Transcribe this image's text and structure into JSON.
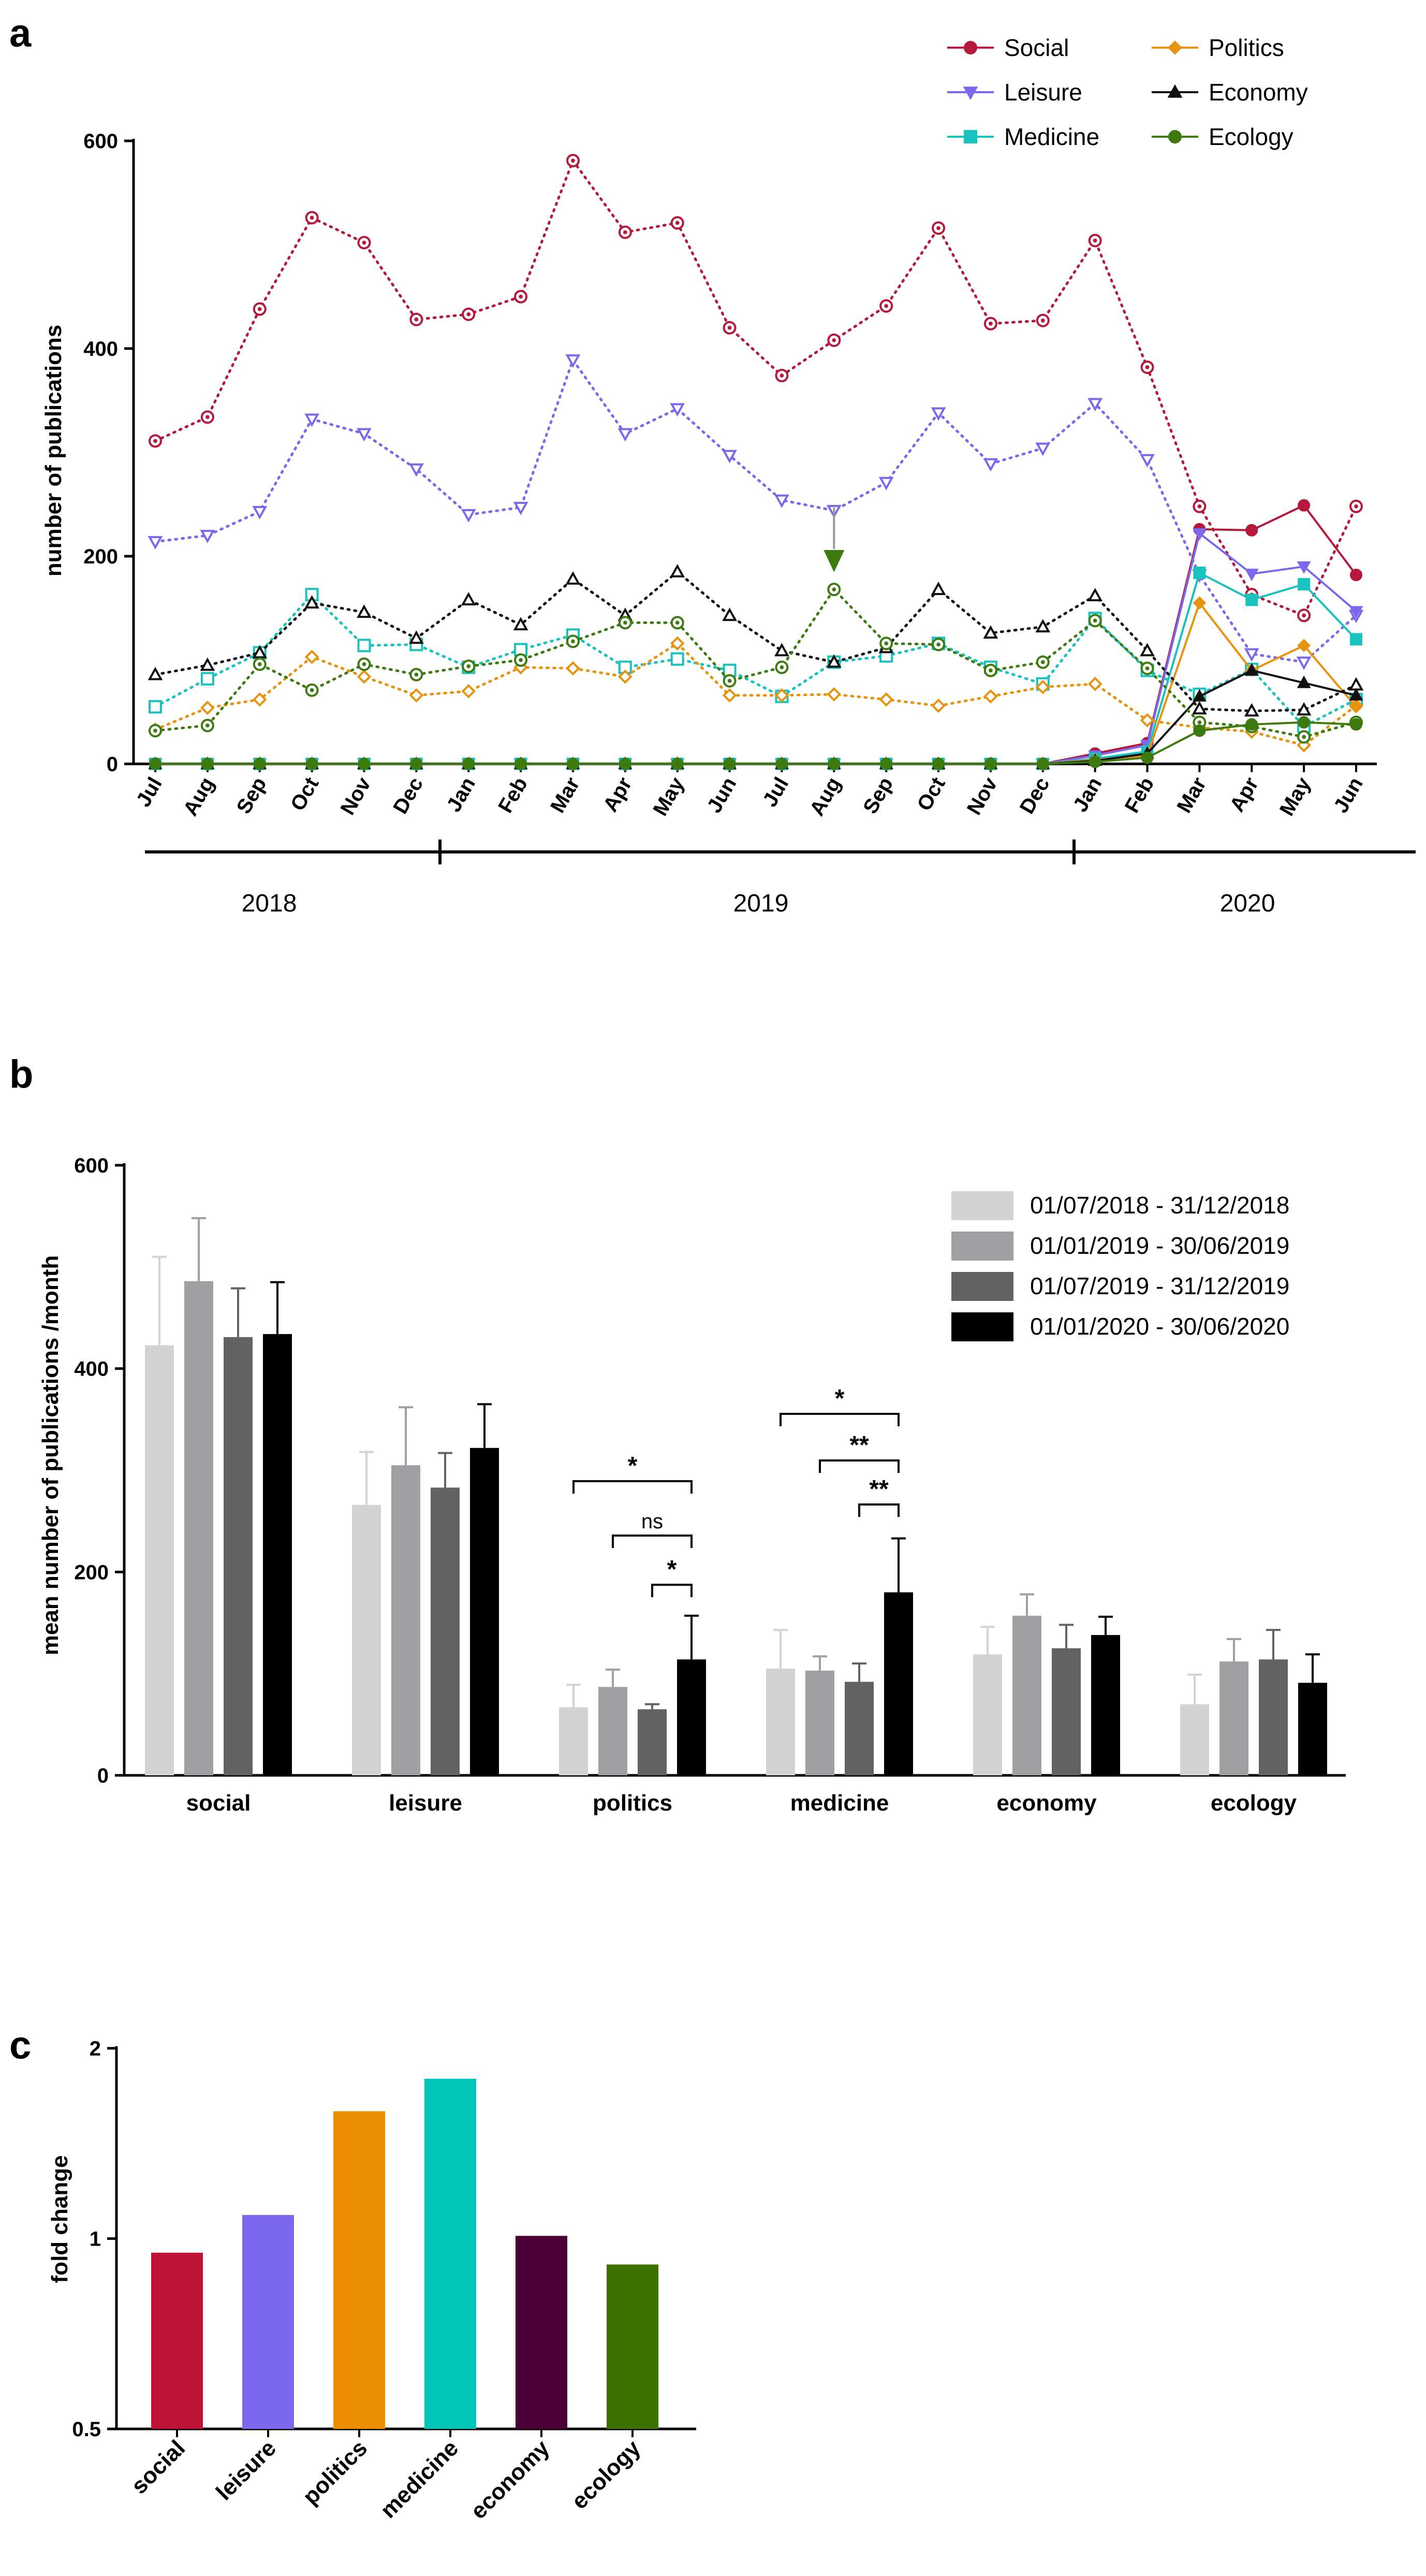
{
  "panels": {
    "a": "a",
    "b": "b",
    "c": "c"
  },
  "chart_data": [
    {
      "panel": "a",
      "type": "line",
      "ylabel": "number of publications",
      "ylim": [
        0,
        600
      ],
      "yticks": [
        0,
        200,
        400,
        600
      ],
      "x": [
        "Jul",
        "Aug",
        "Sep",
        "Oct",
        "Nov",
        "Dec",
        "Jan",
        "Feb",
        "Mar",
        "Apr",
        "May",
        "Jun",
        "Jul",
        "Aug",
        "Sep",
        "Oct",
        "Nov",
        "Dec",
        "Jan",
        "Feb",
        "Mar",
        "Apr",
        "May",
        "Jun"
      ],
      "years": [
        "2018",
        "2019",
        "2020"
      ],
      "legend_position": "top-right",
      "annotation": "arrow marker above Aug 2019 (ecology peak)",
      "series": [
        {
          "name": "Social",
          "color": "#b5183a",
          "marker": "circle",
          "baseline_dotted": [
            311,
            334,
            438,
            526,
            502,
            428,
            433,
            450,
            581,
            512,
            521,
            420,
            374,
            408,
            441,
            516,
            424,
            427,
            504,
            382,
            248,
            163,
            143,
            248
          ],
          "current_solid": [
            0,
            0,
            0,
            0,
            0,
            0,
            0,
            0,
            0,
            0,
            0,
            0,
            0,
            0,
            0,
            0,
            0,
            0,
            10,
            20,
            226,
            225,
            249,
            182
          ]
        },
        {
          "name": "Leisure",
          "color": "#7b68ee",
          "marker": "triangle-down",
          "baseline_dotted": [
            214,
            220,
            243,
            332,
            318,
            284,
            240,
            247,
            389,
            318,
            342,
            297,
            254,
            244,
            271,
            338,
            289,
            304,
            347,
            293,
            182,
            106,
            98,
            143
          ],
          "current_solid": [
            0,
            0,
            0,
            0,
            0,
            0,
            0,
            0,
            0,
            0,
            0,
            0,
            0,
            0,
            0,
            0,
            0,
            0,
            8,
            18,
            222,
            183,
            190,
            147
          ]
        },
        {
          "name": "Medicine",
          "color": "#19c2bd",
          "marker": "square",
          "baseline_dotted": [
            55,
            82,
            107,
            163,
            114,
            115,
            93,
            110,
            124,
            93,
            101,
            90,
            65,
            98,
            104,
            116,
            93,
            77,
            140,
            90,
            67,
            91,
            36,
            62
          ],
          "current_solid": [
            0,
            0,
            0,
            0,
            0,
            0,
            0,
            0,
            0,
            0,
            0,
            0,
            0,
            0,
            0,
            0,
            0,
            0,
            5,
            12,
            184,
            158,
            173,
            120
          ]
        },
        {
          "name": "Politics",
          "color": "#e8930f",
          "marker": "diamond",
          "baseline_dotted": [
            33,
            54,
            62,
            103,
            84,
            66,
            70,
            93,
            92,
            84,
            116,
            66,
            66,
            67,
            62,
            56,
            65,
            74,
            77,
            42,
            35,
            31,
            18,
            56
          ],
          "current_solid": [
            0,
            0,
            0,
            0,
            0,
            0,
            0,
            0,
            0,
            0,
            0,
            0,
            0,
            0,
            0,
            0,
            0,
            0,
            4,
            8,
            155,
            90,
            114,
            55
          ]
        },
        {
          "name": "Economy",
          "color": "#111111",
          "marker": "triangle-up",
          "baseline_dotted": [
            86,
            95,
            107,
            155,
            146,
            121,
            158,
            134,
            178,
            143,
            185,
            143,
            109,
            98,
            112,
            168,
            126,
            132,
            162,
            109,
            53,
            51,
            52,
            76
          ],
          "current_solid": [
            0,
            0,
            0,
            0,
            0,
            0,
            0,
            0,
            0,
            0,
            0,
            0,
            0,
            0,
            0,
            0,
            0,
            0,
            3,
            10,
            65,
            90,
            78,
            66
          ]
        },
        {
          "name": "Ecology",
          "color": "#3d7a0f",
          "marker": "circle-dot",
          "baseline_dotted": [
            32,
            37,
            96,
            71,
            96,
            86,
            94,
            100,
            118,
            136,
            136,
            80,
            93,
            168,
            116,
            115,
            90,
            98,
            138,
            92,
            40,
            36,
            26,
            40
          ],
          "current_solid": [
            0,
            0,
            0,
            0,
            0,
            0,
            0,
            0,
            0,
            0,
            0,
            0,
            0,
            0,
            0,
            0,
            0,
            0,
            2,
            6,
            32,
            38,
            40,
            38
          ]
        }
      ]
    },
    {
      "panel": "b",
      "type": "bar",
      "ylabel": "mean number of publications /month",
      "ylim": [
        0,
        600
      ],
      "yticks": [
        0,
        200,
        400,
        600
      ],
      "categories": [
        "social",
        "leisure",
        "politics",
        "medicine",
        "economy",
        "ecology"
      ],
      "legend_position": "top-right",
      "series": [
        {
          "name": "01/07/2018 - 31/12/2018",
          "color": "#d3d3d3",
          "values": [
            423,
            266,
            67,
            105,
            119,
            70
          ],
          "error": [
            87,
            52,
            22,
            38,
            27,
            29
          ]
        },
        {
          "name": "01/01/2019 - 30/06/2019",
          "color": "#a0a0a2",
          "values": [
            486,
            305,
            87,
            103,
            157,
            112
          ],
          "error": [
            62,
            57,
            17,
            14,
            21,
            22
          ]
        },
        {
          "name": "01/07/2019 - 31/12/2019",
          "color": "#636363",
          "values": [
            431,
            283,
            65,
            92,
            125,
            114
          ],
          "error": [
            48,
            34,
            5,
            18,
            23,
            29
          ]
        },
        {
          "name": "01/01/2020 - 30/06/2020",
          "color": "#000000",
          "values": [
            434,
            322,
            114,
            180,
            138,
            91
          ],
          "error": [
            51,
            43,
            43,
            53,
            18,
            28
          ]
        }
      ],
      "significance": [
        {
          "category": "politics",
          "from": 0,
          "to": 3,
          "label": "*"
        },
        {
          "category": "politics",
          "from": 1,
          "to": 3,
          "label": "ns"
        },
        {
          "category": "politics",
          "from": 2,
          "to": 3,
          "label": "*"
        },
        {
          "category": "medicine",
          "from": 0,
          "to": 3,
          "label": "*"
        },
        {
          "category": "medicine",
          "from": 1,
          "to": 3,
          "label": "**"
        },
        {
          "category": "medicine",
          "from": 2,
          "to": 3,
          "label": "**"
        }
      ]
    },
    {
      "panel": "c",
      "type": "bar",
      "ylabel": "fold change",
      "ylim": [
        0.5,
        2
      ],
      "yscale": "log",
      "yticks": [
        0.5,
        1,
        2
      ],
      "categories": [
        "social",
        "leisure",
        "politics",
        "medicine",
        "economy",
        "ecology"
      ],
      "values": [
        0.95,
        1.09,
        1.59,
        1.79,
        1.01,
        0.91
      ],
      "colors": [
        "#be1234",
        "#7b68ee",
        "#ed8e00",
        "#00c6b9",
        "#4a0036",
        "#3d7200"
      ]
    }
  ]
}
